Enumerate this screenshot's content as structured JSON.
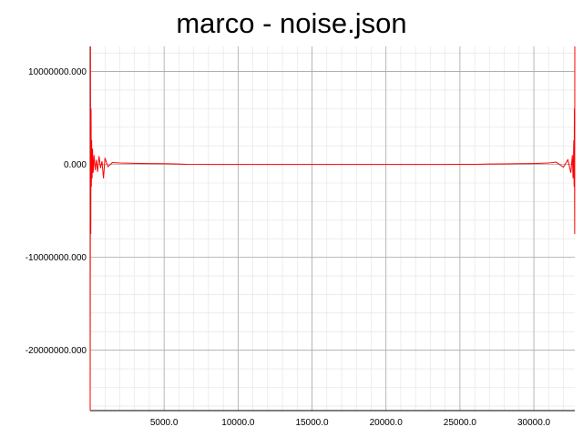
{
  "chart_data": {
    "type": "line",
    "title": "marco - noise.json",
    "xlabel": "",
    "ylabel": "",
    "xlim": [
      0,
      32768
    ],
    "ylim": [
      -26500000,
      12700000
    ],
    "grid": true,
    "line_color": "#ff0000",
    "x_ticks": [
      5000,
      10000,
      15000,
      20000,
      25000,
      30000
    ],
    "x_tick_labels": [
      "5000.0",
      "10000.0",
      "15000.0",
      "20000.0",
      "25000.0",
      "30000.0"
    ],
    "y_ticks": [
      10000000,
      0,
      -10000000,
      -20000000
    ],
    "y_tick_labels": [
      "10000000.000",
      "0.000",
      "-10000000.000",
      "-20000000.000"
    ],
    "series": [
      {
        "x": [
          0,
          20,
          40,
          60,
          80,
          100,
          130,
          160,
          200,
          260,
          340,
          420,
          500,
          600,
          700,
          800,
          900,
          1000,
          1200,
          1500,
          2000,
          3000,
          4000,
          5000,
          6000,
          6500,
          8000,
          12000,
          16000,
          20000,
          24000,
          26000,
          27000,
          28000,
          29000,
          30000,
          31000,
          31500,
          32000,
          32300,
          32500,
          32600,
          32650,
          32700,
          32720,
          32740,
          32760,
          32768
        ],
        "y": [
          -26500000,
          12700000,
          -7500000,
          6000000,
          -2400000,
          2600000,
          -1500000,
          1700000,
          -900000,
          1000000,
          -600000,
          500000,
          -800000,
          900000,
          -400000,
          350000,
          -1500000,
          700000,
          -250000,
          200000,
          150000,
          120000,
          100000,
          80000,
          40000,
          10000,
          0,
          0,
          0,
          0,
          0,
          15000,
          40000,
          60000,
          80000,
          100000,
          150000,
          250000,
          -300000,
          500000,
          -900000,
          1000000,
          -1500000,
          2600000,
          -2400000,
          6000000,
          -7500000,
          12700000
        ]
      }
    ]
  }
}
